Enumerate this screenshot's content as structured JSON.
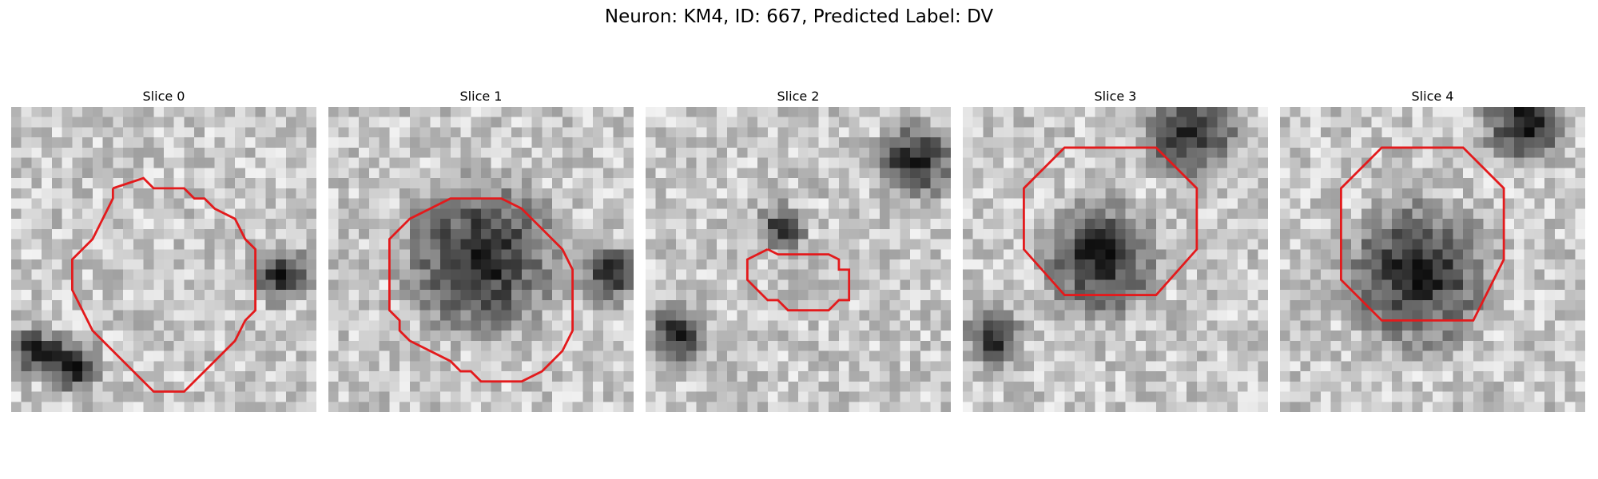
{
  "figure": {
    "title": "Neuron: KM4, ID: 667, Predicted Label: DV",
    "contour_color": "#e31a1c"
  },
  "panels": [
    {
      "title": "Slice 0",
      "dark_blobs": [
        [
          0.2,
          0.85,
          0.12
        ],
        [
          0.08,
          0.8,
          0.1
        ],
        [
          0.88,
          0.55,
          0.12
        ]
      ]
    },
    {
      "title": "Slice 1",
      "dark_blobs": [
        [
          0.5,
          0.5,
          0.32
        ],
        [
          0.92,
          0.55,
          0.12
        ]
      ]
    },
    {
      "title": "Slice 2",
      "dark_blobs": [
        [
          0.88,
          0.18,
          0.16
        ],
        [
          0.45,
          0.4,
          0.1
        ],
        [
          0.1,
          0.75,
          0.12
        ]
      ]
    },
    {
      "title": "Slice 3",
      "dark_blobs": [
        [
          0.75,
          0.08,
          0.2
        ],
        [
          0.45,
          0.5,
          0.24
        ],
        [
          0.1,
          0.75,
          0.12
        ]
      ]
    },
    {
      "title": "Slice 4",
      "dark_blobs": [
        [
          0.8,
          0.05,
          0.18
        ],
        [
          0.45,
          0.55,
          0.3
        ]
      ]
    }
  ]
}
